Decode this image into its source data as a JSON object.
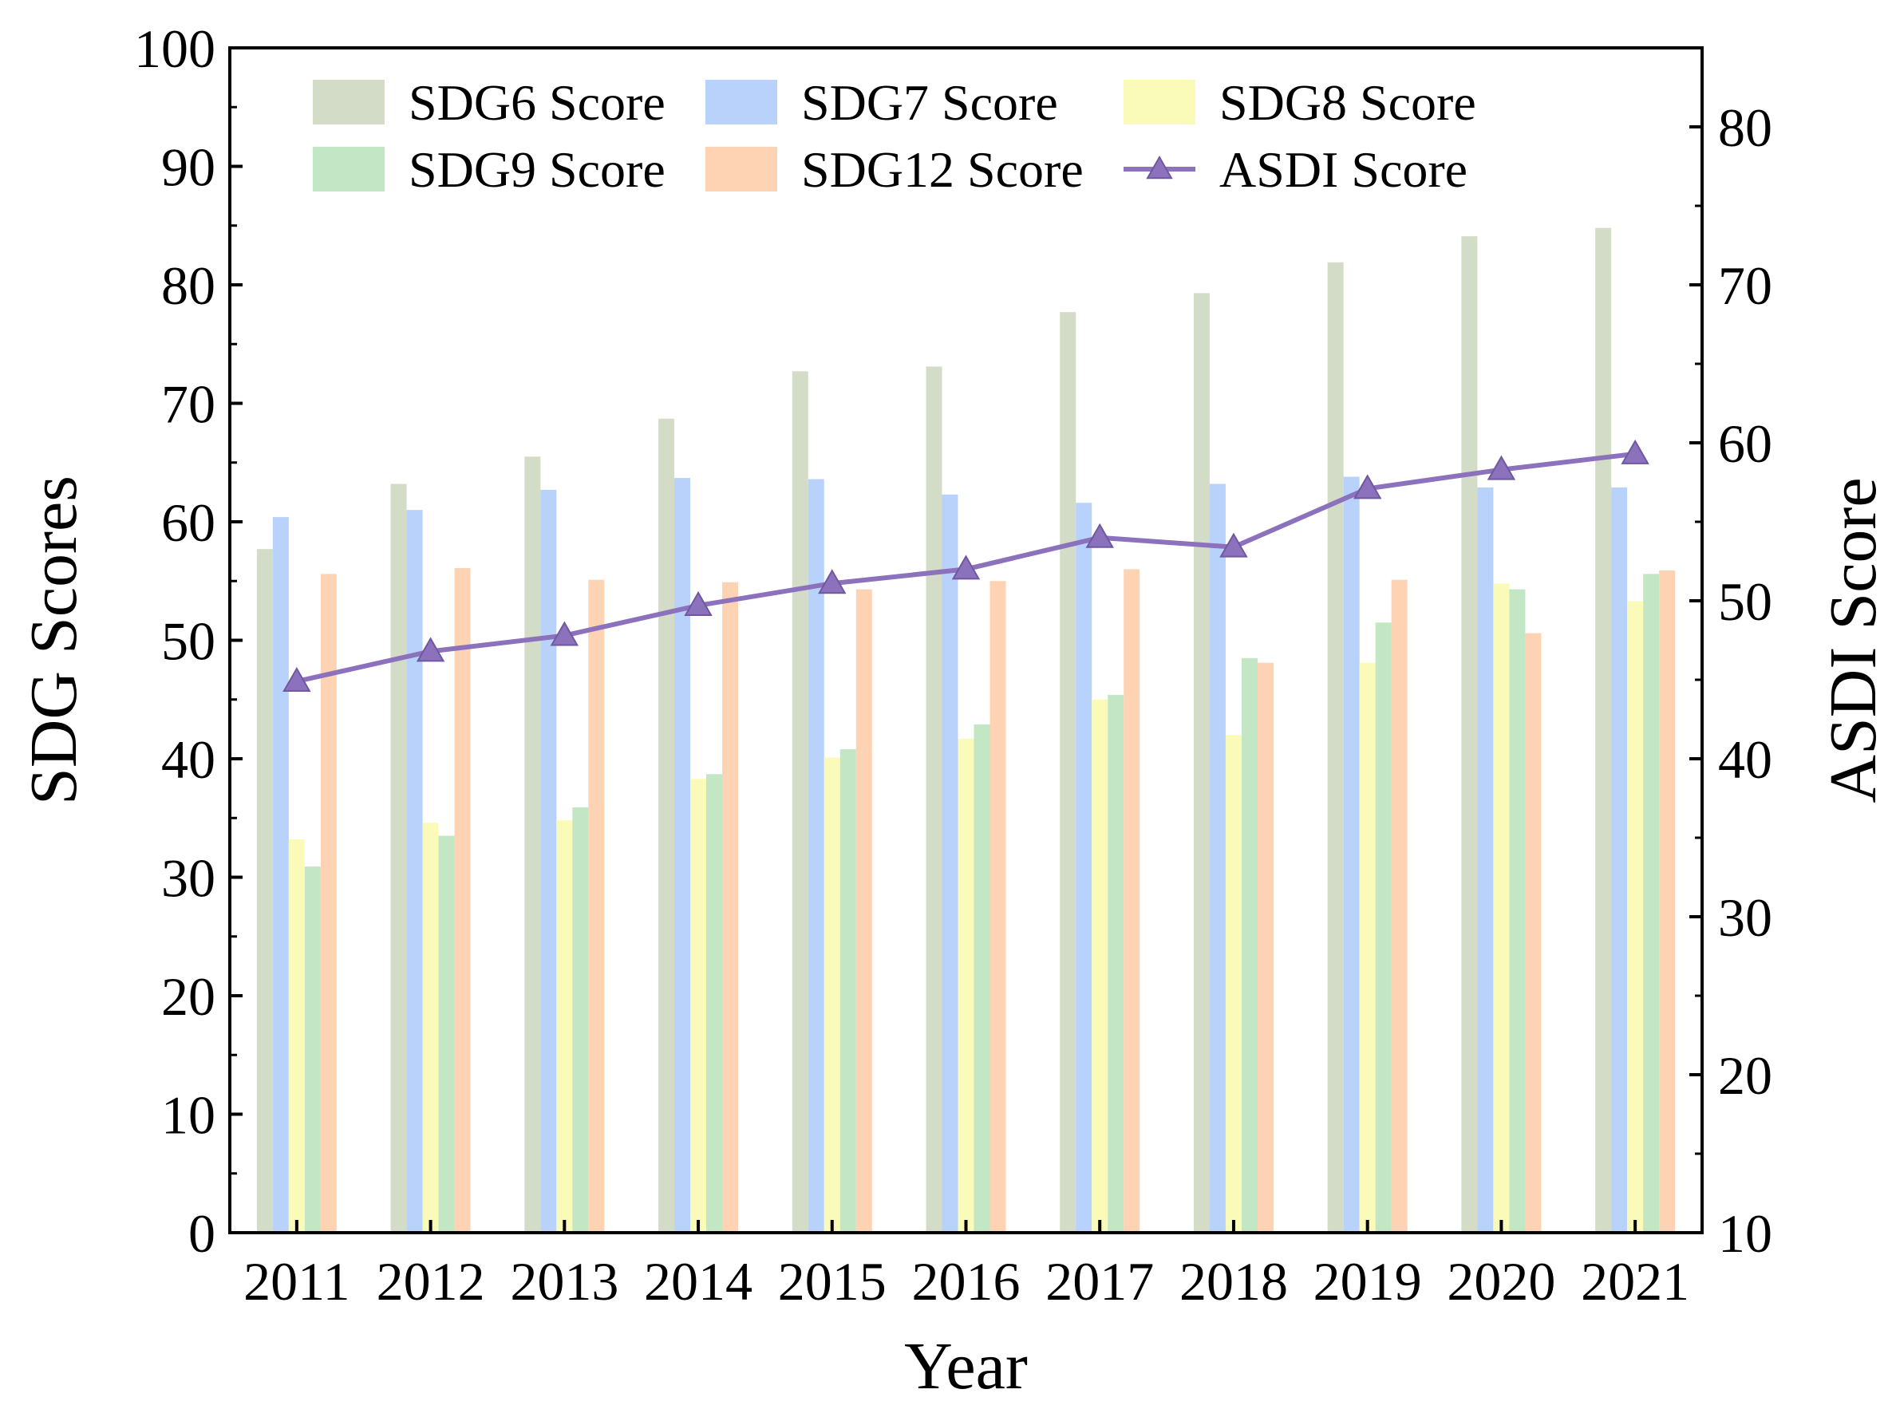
{
  "chart_data": {
    "type": "bar",
    "title": "",
    "xlabel": "Year",
    "ylabel": "SDG Scores",
    "y2label": "ASDI Score",
    "categories": [
      "2011",
      "2012",
      "2013",
      "2014",
      "2015",
      "2016",
      "2017",
      "2018",
      "2019",
      "2020",
      "2021"
    ],
    "ylim": [
      0,
      100
    ],
    "y2lim": [
      10,
      85
    ],
    "yticks": [
      0,
      10,
      20,
      30,
      40,
      50,
      60,
      70,
      80,
      90,
      100
    ],
    "y2ticks": [
      10,
      20,
      30,
      40,
      50,
      60,
      70,
      80
    ],
    "grid": false,
    "legend_position": "top",
    "series": [
      {
        "name": "SDG6 Score",
        "type": "bar",
        "axis": "left",
        "color": "#d3dcc6",
        "values": [
          57.7,
          63.2,
          65.5,
          68.7,
          72.7,
          73.1,
          77.7,
          79.3,
          81.9,
          84.1,
          84.8
        ]
      },
      {
        "name": "SDG7 Score",
        "type": "bar",
        "axis": "left",
        "color": "#b9d2fb",
        "values": [
          60.4,
          61.0,
          62.7,
          63.7,
          63.6,
          62.3,
          61.6,
          63.2,
          63.8,
          62.9,
          62.9
        ]
      },
      {
        "name": "SDG8 Score",
        "type": "bar",
        "axis": "left",
        "color": "#fbfbb9",
        "values": [
          33.2,
          34.6,
          34.8,
          38.3,
          40.1,
          41.7,
          45.0,
          42.0,
          48.1,
          54.8,
          53.3
        ]
      },
      {
        "name": "SDG9 Score",
        "type": "bar",
        "axis": "left",
        "color": "#c3e6c4",
        "values": [
          30.9,
          33.5,
          35.9,
          38.7,
          40.8,
          42.9,
          45.4,
          48.5,
          51.5,
          54.3,
          55.6
        ]
      },
      {
        "name": "SDG12 Score",
        "type": "bar",
        "axis": "left",
        "color": "#fdd3b3",
        "values": [
          55.6,
          56.1,
          55.1,
          54.9,
          54.3,
          55.0,
          56.0,
          48.1,
          55.1,
          50.6,
          55.9
        ]
      },
      {
        "name": "ASDI Score",
        "type": "line",
        "axis": "right",
        "color": "#8c71bc",
        "marker": "triangle",
        "values": [
          44.9,
          46.8,
          47.8,
          49.7,
          51.1,
          52.0,
          54.0,
          53.4,
          57.1,
          58.3,
          59.3
        ]
      }
    ]
  }
}
